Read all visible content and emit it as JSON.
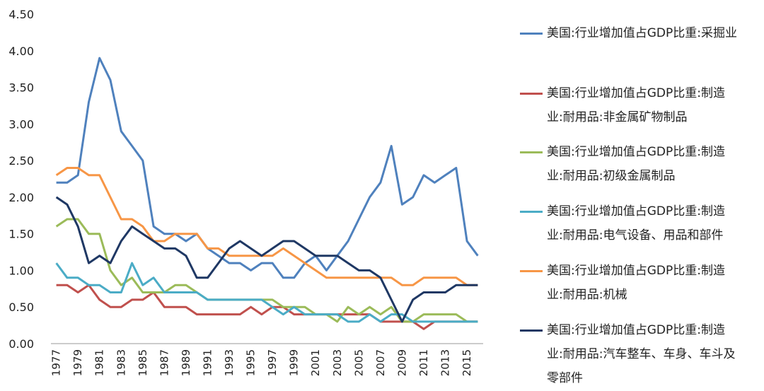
{
  "chart_data": {
    "type": "line",
    "title": "",
    "xlabel": "",
    "ylabel": "",
    "ylim": [
      0,
      4.5
    ],
    "y_ticks": [
      "0.00",
      "0.50",
      "1.00",
      "1.50",
      "2.00",
      "2.50",
      "3.00",
      "3.50",
      "4.00",
      "4.50"
    ],
    "x": [
      1977,
      1978,
      1979,
      1980,
      1981,
      1982,
      1983,
      1984,
      1985,
      1986,
      1987,
      1988,
      1989,
      1990,
      1991,
      1992,
      1993,
      1994,
      1995,
      1996,
      1997,
      1998,
      1999,
      2000,
      2001,
      2002,
      2003,
      2004,
      2005,
      2006,
      2007,
      2008,
      2009,
      2010,
      2011,
      2012,
      2013,
      2014,
      2015,
      2016
    ],
    "x_tick_labels": [
      "1977",
      "1979",
      "1981",
      "1983",
      "1985",
      "1987",
      "1989",
      "1991",
      "1993",
      "1995",
      "1997",
      "1999",
      "2001",
      "2003",
      "2005",
      "2007",
      "2009",
      "2011",
      "2013",
      "2015"
    ],
    "legend_position": "right",
    "series": [
      {
        "name": "美国:行业增加值占GDP比重:采掘业",
        "color": "#4f81bd",
        "values": [
          2.2,
          2.2,
          2.3,
          3.3,
          3.9,
          3.6,
          2.9,
          2.7,
          2.5,
          1.6,
          1.5,
          1.5,
          1.4,
          1.5,
          1.3,
          1.2,
          1.1,
          1.1,
          1.0,
          1.1,
          1.1,
          0.9,
          0.9,
          1.1,
          1.2,
          1.0,
          1.2,
          1.4,
          1.7,
          2.0,
          2.2,
          2.7,
          1.9,
          2.0,
          2.3,
          2.2,
          2.3,
          2.4,
          1.4,
          1.2
        ]
      },
      {
        "name": "美国:行业增加值占GDP比重:制造业:耐用品:非金属矿物制品",
        "color": "#c0504d",
        "values": [
          0.8,
          0.8,
          0.7,
          0.8,
          0.6,
          0.5,
          0.5,
          0.6,
          0.6,
          0.7,
          0.5,
          0.5,
          0.5,
          0.4,
          0.4,
          0.4,
          0.4,
          0.4,
          0.5,
          0.4,
          0.5,
          0.5,
          0.4,
          0.4,
          0.4,
          0.4,
          0.4,
          0.4,
          0.4,
          0.4,
          0.3,
          0.3,
          0.3,
          0.3,
          0.2,
          0.3,
          0.3,
          0.3,
          0.3,
          0.3
        ]
      },
      {
        "name": "美国:行业增加值占GDP比重:制造业:耐用品:初级金属制品",
        "color": "#9bbb59",
        "values": [
          1.6,
          1.7,
          1.7,
          1.5,
          1.5,
          1.0,
          0.8,
          0.9,
          0.7,
          0.7,
          0.7,
          0.8,
          0.8,
          0.7,
          0.6,
          0.6,
          0.6,
          0.6,
          0.6,
          0.6,
          0.6,
          0.5,
          0.5,
          0.5,
          0.4,
          0.4,
          0.3,
          0.5,
          0.4,
          0.5,
          0.4,
          0.5,
          0.3,
          0.3,
          0.4,
          0.4,
          0.4,
          0.4,
          0.3,
          0.3
        ]
      },
      {
        "name": "美国:行业增加值占GDP比重:制造业:耐用品:电气设备、用品和部件",
        "color": "#4bacc6",
        "values": [
          1.1,
          0.9,
          0.9,
          0.8,
          0.8,
          0.7,
          0.7,
          1.1,
          0.8,
          0.9,
          0.7,
          0.7,
          0.7,
          0.7,
          0.6,
          0.6,
          0.6,
          0.6,
          0.6,
          0.6,
          0.5,
          0.4,
          0.5,
          0.4,
          0.4,
          0.4,
          0.4,
          0.3,
          0.3,
          0.4,
          0.3,
          0.4,
          0.4,
          0.3,
          0.3,
          0.3,
          0.3,
          0.3,
          0.3,
          0.3
        ]
      },
      {
        "name": "美国:行业增加值占GDP比重:制造业:耐用品:机械",
        "color": "#f79646",
        "values": [
          2.3,
          2.4,
          2.4,
          2.3,
          2.3,
          2.0,
          1.7,
          1.7,
          1.6,
          1.4,
          1.4,
          1.5,
          1.5,
          1.5,
          1.3,
          1.3,
          1.2,
          1.2,
          1.2,
          1.2,
          1.2,
          1.3,
          1.2,
          1.1,
          1.0,
          0.9,
          0.9,
          0.9,
          0.9,
          0.9,
          0.9,
          0.9,
          0.8,
          0.8,
          0.9,
          0.9,
          0.9,
          0.9,
          0.8,
          0.8
        ]
      },
      {
        "name": "美国:行业增加值占GDP比重:制造业:耐用品:汽车整车、车身、车斗及零部件",
        "color": "#1f3864",
        "values": [
          2.0,
          1.9,
          1.6,
          1.1,
          1.2,
          1.1,
          1.4,
          1.6,
          1.5,
          1.4,
          1.3,
          1.3,
          1.2,
          0.9,
          0.9,
          1.1,
          1.3,
          1.4,
          1.3,
          1.2,
          1.3,
          1.4,
          1.4,
          1.3,
          1.2,
          1.2,
          1.2,
          1.1,
          1.0,
          1.0,
          0.9,
          0.6,
          0.3,
          0.6,
          0.7,
          0.7,
          0.7,
          0.8,
          0.8,
          0.8
        ]
      }
    ],
    "legend_lines": [
      [
        "美国:行业增加值占GDP比重:采掘业"
      ],
      [
        "美国:行业增加值占GDP比重:制造",
        "业:耐用品:非金属矿物制品"
      ],
      [
        "美国:行业增加值占GDP比重:制造",
        "业:耐用品:初级金属制品"
      ],
      [
        "美国:行业增加值占GDP比重:制造",
        "业:耐用品:电气设备、用品和部件"
      ],
      [
        "美国:行业增加值占GDP比重:制造",
        "业:耐用品:机械"
      ],
      [
        "美国:行业增加值占GDP比重:制造",
        "业:耐用品:汽车整车、车身、车斗及",
        "零部件"
      ]
    ]
  }
}
